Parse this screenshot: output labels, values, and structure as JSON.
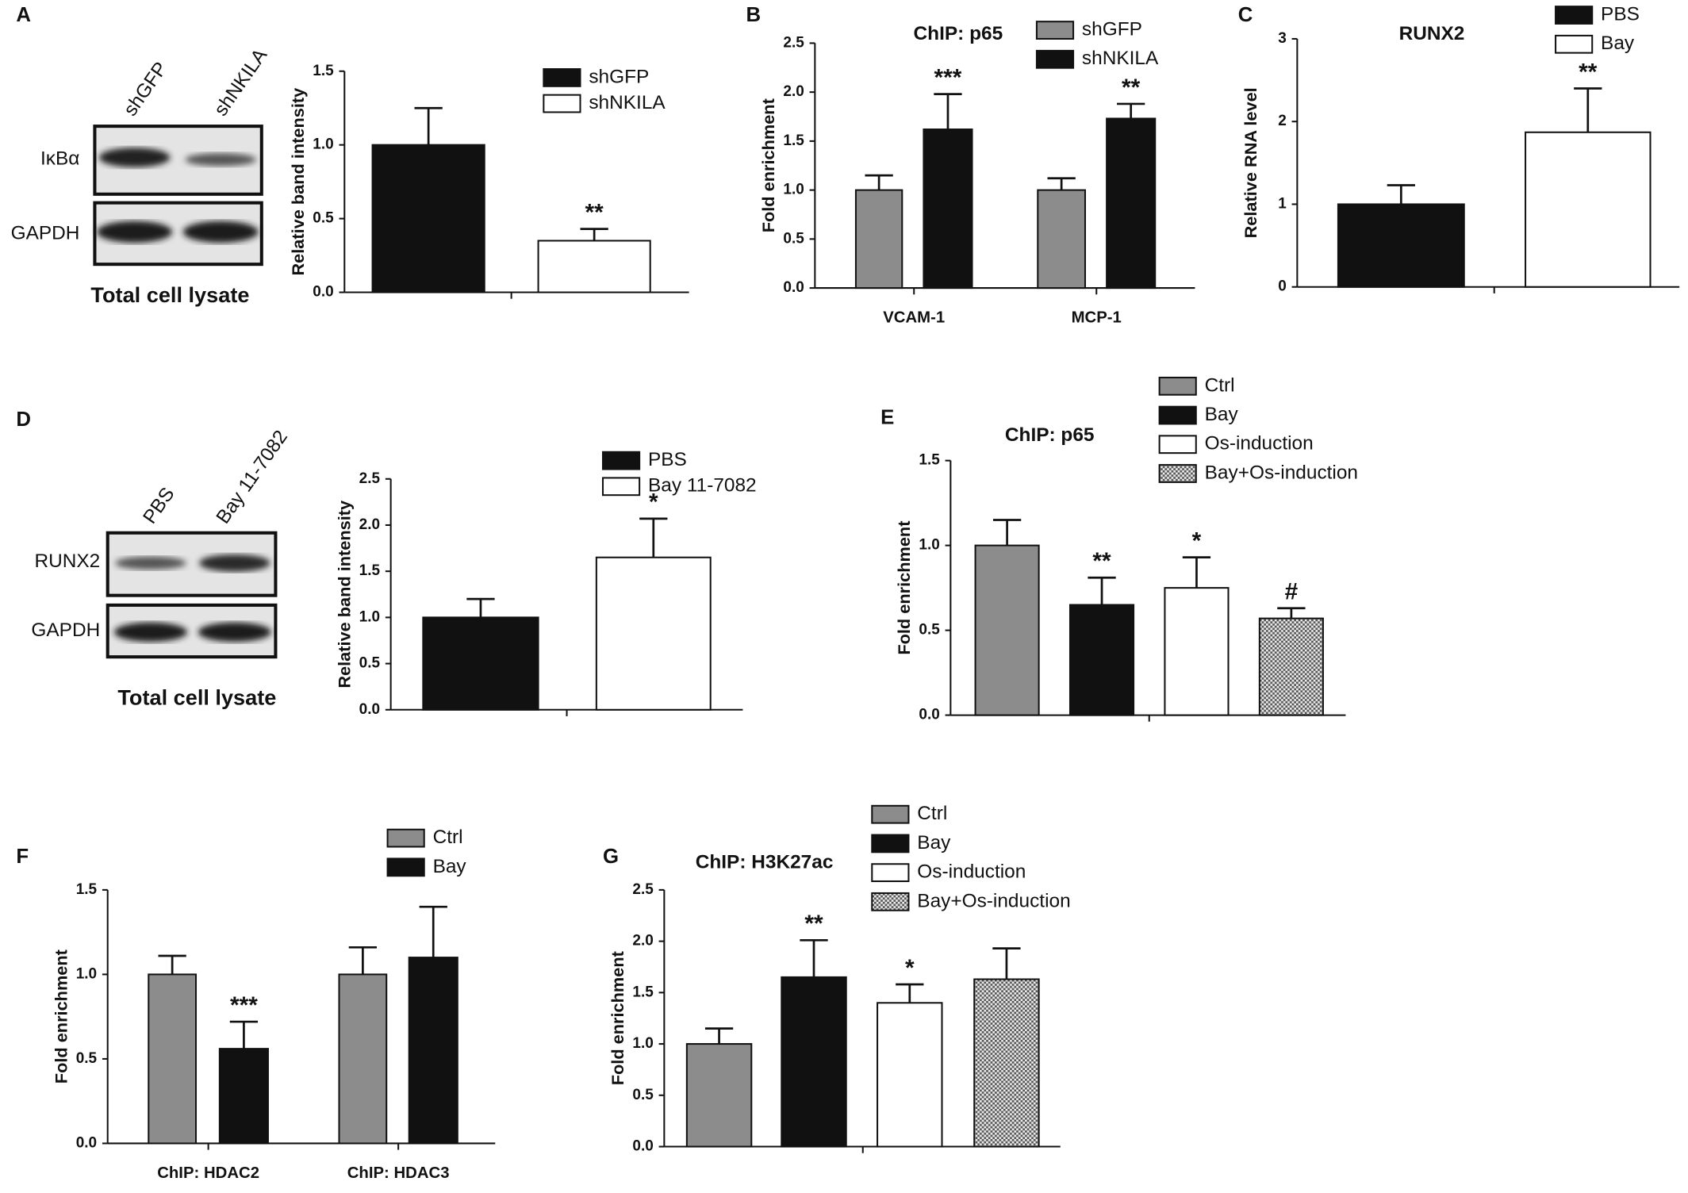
{
  "blots": [
    {
      "columns": [
        "shGFP",
        "shNKILA"
      ],
      "rows": [
        "IκBα",
        "GAPDH"
      ],
      "caption": "Total cell lysate"
    },
    {
      "columns": [
        "PBS",
        "Bay 11-7082"
      ],
      "rows": [
        "RUNX2",
        "GAPDH"
      ],
      "caption": "Total cell lysate"
    }
  ],
  "chart_data": [
    {
      "type": "bar",
      "panel": "A",
      "ylabel": "Relative band intensity",
      "ylim": [
        0,
        1.5
      ],
      "yticks": [
        {
          "value": 0,
          "label": "0.0"
        },
        {
          "value": 0.5,
          "label": "0.5"
        },
        {
          "value": 1,
          "label": "1.0"
        },
        {
          "value": 1.5,
          "label": "1.5"
        }
      ],
      "series": [
        {
          "name": "shGFP",
          "color": "#111111",
          "values": [
            1.0
          ],
          "errors": [
            0.25
          ]
        },
        {
          "name": "shNKILA",
          "color": "#ffffff",
          "values": [
            0.35
          ],
          "errors": [
            0.08
          ],
          "significance": [
            "**"
          ]
        }
      ]
    },
    {
      "type": "bar",
      "panel": "B",
      "title": "ChIP:  p65",
      "ylabel": "Fold enrichment",
      "categories": [
        "VCAM-1",
        "MCP-1"
      ],
      "ylim": [
        0,
        2.5
      ],
      "yticks": [
        {
          "value": 0,
          "label": "0.0"
        },
        {
          "value": 0.5,
          "label": "0.5"
        },
        {
          "value": 1,
          "label": "1.0"
        },
        {
          "value": 1.5,
          "label": "1.5"
        },
        {
          "value": 2,
          "label": "2.0"
        },
        {
          "value": 2.5,
          "label": "2.5"
        }
      ],
      "series": [
        {
          "name": "shGFP",
          "color": "#8c8c8c",
          "values": [
            1.0,
            1.0
          ],
          "errors": [
            0.15,
            0.12
          ]
        },
        {
          "name": "shNKILA",
          "color": "#111111",
          "values": [
            1.62,
            1.73
          ],
          "errors": [
            0.36,
            0.15
          ],
          "significance": [
            "***",
            "**"
          ]
        }
      ]
    },
    {
      "type": "bar",
      "panel": "C",
      "title": "RUNX2",
      "ylabel": "Relative RNA level",
      "ylim": [
        0,
        3
      ],
      "yticks": [
        0,
        1,
        2,
        3
      ],
      "series": [
        {
          "name": "PBS",
          "color": "#111111",
          "values": [
            1.0
          ],
          "errors": [
            0.23
          ]
        },
        {
          "name": "Bay",
          "color": "#ffffff",
          "values": [
            1.87
          ],
          "errors": [
            0.53
          ],
          "significance": [
            "**"
          ]
        }
      ]
    },
    {
      "type": "bar",
      "panel": "D",
      "ylabel": "Relative band intensity",
      "ylim": [
        0,
        2.5
      ],
      "yticks": [
        {
          "value": 0,
          "label": "0.0"
        },
        {
          "value": 0.5,
          "label": "0.5"
        },
        {
          "value": 1,
          "label": "1.0"
        },
        {
          "value": 1.5,
          "label": "1.5"
        },
        {
          "value": 2,
          "label": "2.0"
        },
        {
          "value": 2.5,
          "label": "2.5"
        }
      ],
      "series": [
        {
          "name": "PBS",
          "color": "#111111",
          "values": [
            1.0
          ],
          "errors": [
            0.2
          ]
        },
        {
          "name": "Bay 11-7082",
          "color": "#ffffff",
          "values": [
            1.65
          ],
          "errors": [
            0.42
          ],
          "significance": [
            "*"
          ]
        }
      ]
    },
    {
      "type": "bar",
      "panel": "E",
      "title": "ChIP:  p65",
      "ylabel": "Fold enrichment",
      "ylim": [
        0,
        1.5
      ],
      "yticks": [
        {
          "value": 0,
          "label": "0.0"
        },
        {
          "value": 0.5,
          "label": "0.5"
        },
        {
          "value": 1,
          "label": "1.0"
        },
        {
          "value": 1.5,
          "label": "1.5"
        }
      ],
      "series": [
        {
          "name": "Ctrl",
          "color": "#8c8c8c",
          "values": [
            1.0
          ],
          "errors": [
            0.15
          ]
        },
        {
          "name": "Bay",
          "color": "#111111",
          "values": [
            0.65
          ],
          "errors": [
            0.16
          ],
          "significance": [
            "**"
          ]
        },
        {
          "name": "Os-induction",
          "color": "#ffffff",
          "values": [
            0.75
          ],
          "errors": [
            0.18
          ],
          "significance": [
            "*"
          ]
        },
        {
          "name": "Bay+Os-induction",
          "color": "#9a9a9a",
          "hatch": true,
          "values": [
            0.57
          ],
          "errors": [
            0.06
          ],
          "significance": [
            "#"
          ]
        }
      ]
    },
    {
      "type": "bar",
      "panel": "F",
      "ylabel": "Fold enrichment",
      "categories": [
        "ChIP:  HDAC2",
        "ChIP:  HDAC3"
      ],
      "ylim": [
        0,
        1.5
      ],
      "yticks": [
        {
          "value": 0,
          "label": "0.0"
        },
        {
          "value": 0.5,
          "label": "0.5"
        },
        {
          "value": 1,
          "label": "1.0"
        },
        {
          "value": 1.5,
          "label": "1.5"
        }
      ],
      "series": [
        {
          "name": "Ctrl",
          "color": "#8c8c8c",
          "values": [
            1.0,
            1.0
          ],
          "errors": [
            0.11,
            0.16
          ]
        },
        {
          "name": "Bay",
          "color": "#111111",
          "values": [
            0.56,
            1.1
          ],
          "errors": [
            0.16,
            0.3
          ],
          "significance": [
            "***",
            null
          ]
        }
      ]
    },
    {
      "type": "bar",
      "panel": "G",
      "title": "ChIP:  H3K27ac",
      "ylabel": "Fold enrichment",
      "ylim": [
        0,
        2.5
      ],
      "yticks": [
        {
          "value": 0,
          "label": "0.0"
        },
        {
          "value": 0.5,
          "label": "0.5"
        },
        {
          "value": 1,
          "label": "1.0"
        },
        {
          "value": 1.5,
          "label": "1.5"
        },
        {
          "value": 2,
          "label": "2.0"
        },
        {
          "value": 2.5,
          "label": "2.5"
        }
      ],
      "series": [
        {
          "name": "Ctrl",
          "color": "#8c8c8c",
          "values": [
            1.0
          ],
          "errors": [
            0.15
          ]
        },
        {
          "name": "Bay",
          "color": "#111111",
          "values": [
            1.65
          ],
          "errors": [
            0.36
          ],
          "significance": [
            "**"
          ]
        },
        {
          "name": "Os-induction",
          "color": "#ffffff",
          "values": [
            1.4
          ],
          "errors": [
            0.18
          ],
          "significance": [
            "*"
          ]
        },
        {
          "name": "Bay+Os-induction",
          "color": "#9a9a9a",
          "hatch": true,
          "values": [
            1.63
          ],
          "errors": [
            0.3
          ]
        }
      ]
    }
  ]
}
